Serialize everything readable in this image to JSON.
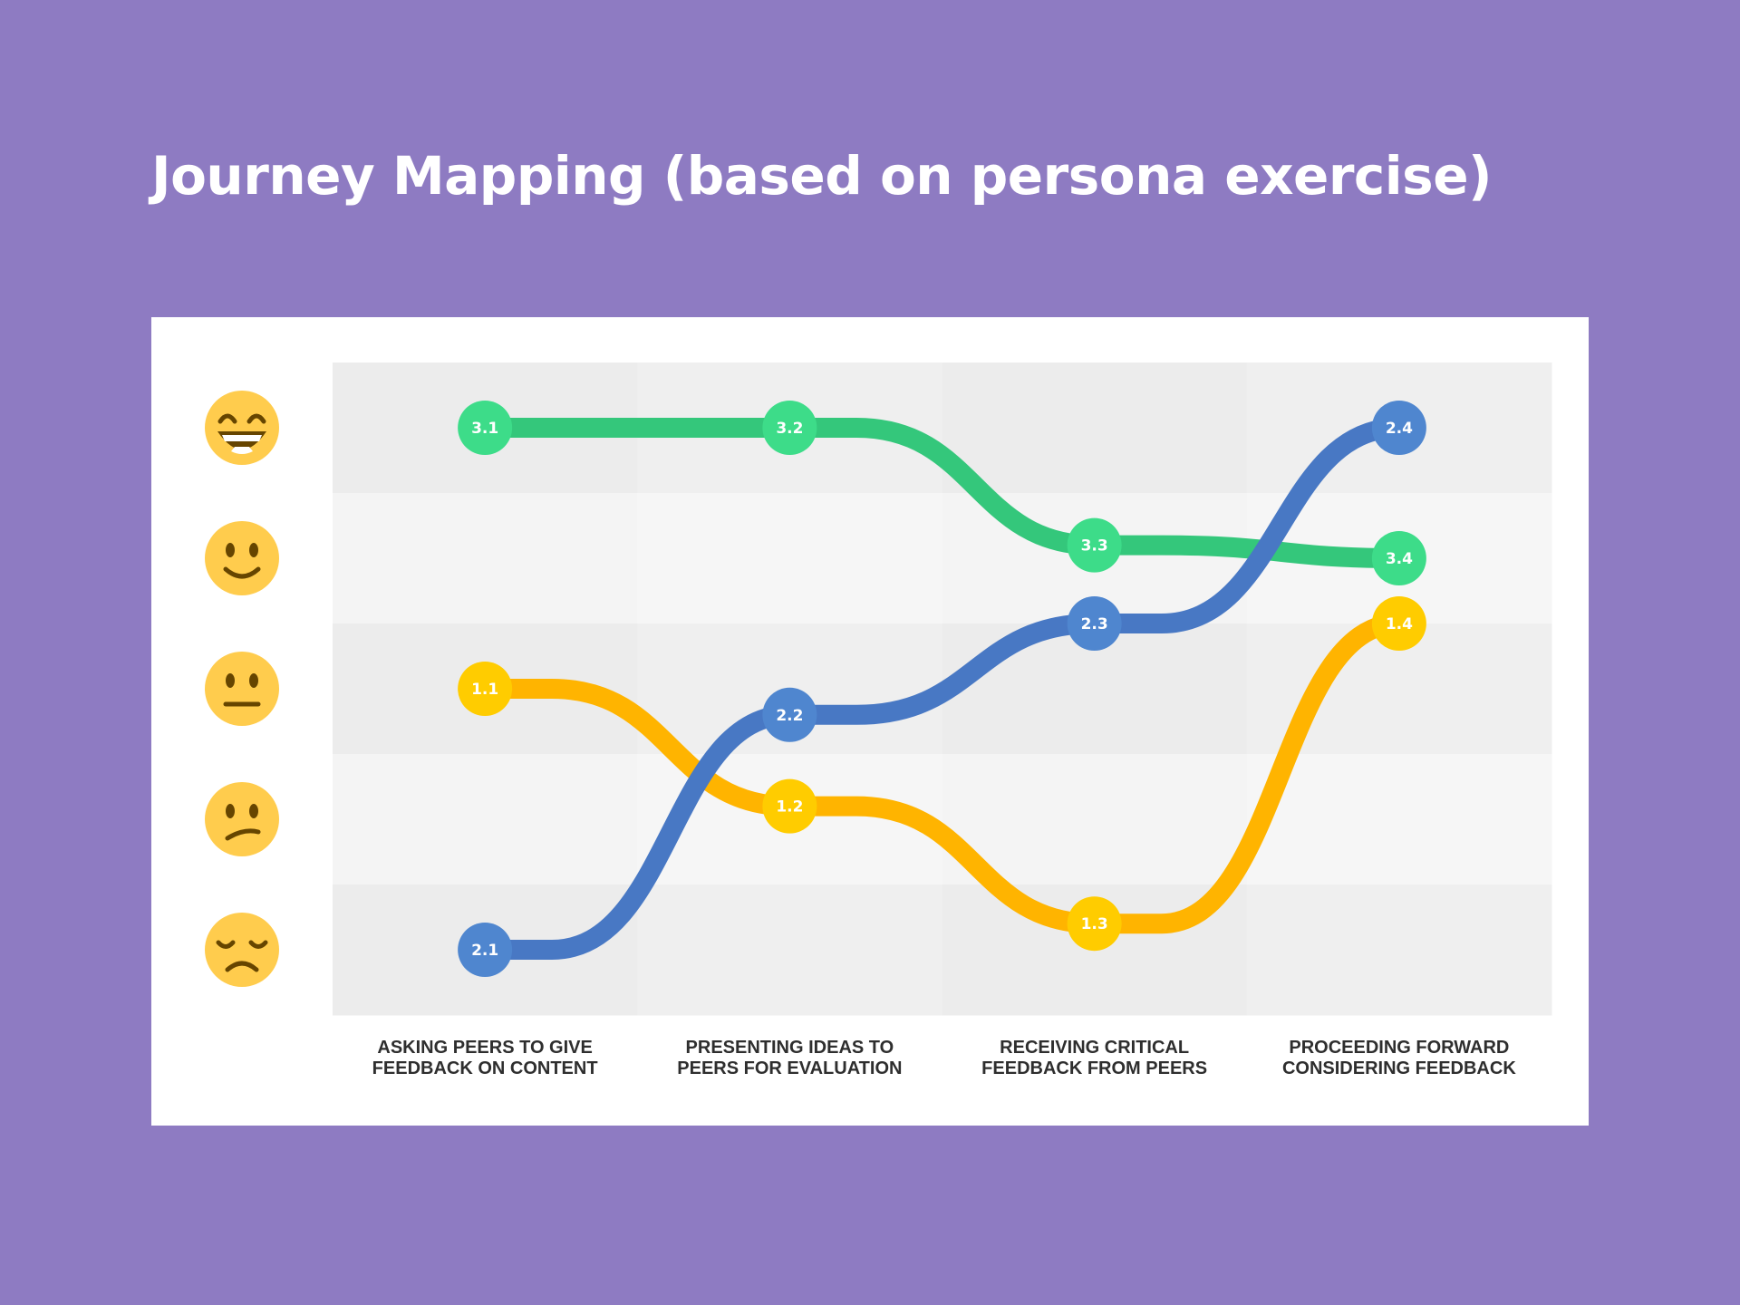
{
  "title": "Journey Mapping (based on persona exercise)",
  "chart_data": {
    "type": "line",
    "title": "Journey Mapping (based on persona exercise)",
    "categories": [
      [
        "ASKING PEERS TO GIVE",
        "FEEDBACK ON CONTENT"
      ],
      [
        "PRESENTING IDEAS TO",
        "PEERS FOR EVALUATION"
      ],
      [
        "RECEIVING CRITICAL",
        "FEEDBACK FROM PEERS"
      ],
      [
        "PROCEEDING FORWARD",
        "CONSIDERING FEEDBACK"
      ]
    ],
    "y_levels": [
      {
        "value": 5,
        "icon": "grinning-face-icon"
      },
      {
        "value": 4,
        "icon": "slightly-smiling-face-icon"
      },
      {
        "value": 3,
        "icon": "neutral-face-icon"
      },
      {
        "value": 2,
        "icon": "confused-face-icon"
      },
      {
        "value": 1,
        "icon": "unamused-face-icon"
      }
    ],
    "ylim": [
      0.5,
      5.5
    ],
    "series": [
      {
        "color": "#34c77b",
        "point_color": "#3ddc89",
        "points": [
          {
            "x": 0,
            "y": 5,
            "label": "3.1"
          },
          {
            "x": 1,
            "y": 5,
            "label": "3.2"
          },
          {
            "x": 2,
            "y": 4.1,
            "label": "3.3"
          },
          {
            "x": 3,
            "y": 4,
            "label": "3.4"
          }
        ]
      },
      {
        "color": "#ffb400",
        "point_color": "#ffcc00",
        "points": [
          {
            "x": 0,
            "y": 3,
            "label": "1.1"
          },
          {
            "x": 1,
            "y": 2.1,
            "label": "1.2"
          },
          {
            "x": 2,
            "y": 1.2,
            "label": "1.3"
          },
          {
            "x": 3,
            "y": 3.5,
            "label": "1.4"
          }
        ]
      },
      {
        "color": "#4878c4",
        "point_color": "#4f86cf",
        "points": [
          {
            "x": 0,
            "y": 1,
            "label": "2.1"
          },
          {
            "x": 1,
            "y": 2.8,
            "label": "2.2"
          },
          {
            "x": 2,
            "y": 3.5,
            "label": "2.3"
          },
          {
            "x": 3,
            "y": 5,
            "label": "2.4"
          }
        ]
      }
    ]
  }
}
